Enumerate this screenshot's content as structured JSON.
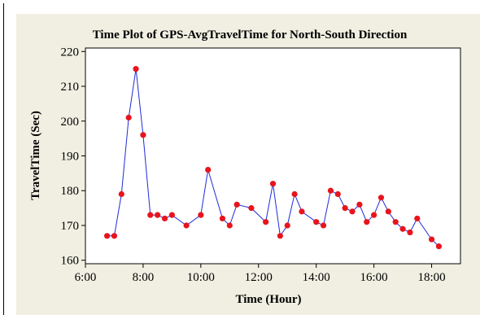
{
  "chart_data": {
    "type": "line",
    "title": "Time Plot of GPS-AvgTravelTime for North-South Direction",
    "xlabel": "Time (Hour)",
    "ylabel": "TravelTime (Sec)",
    "x_ticks": [
      "6:00",
      "8:00",
      "10:00",
      "12:00",
      "14:00",
      "16:00",
      "18:00"
    ],
    "x_tick_values_hours": [
      6,
      8,
      10,
      12,
      14,
      16,
      18
    ],
    "y_ticks": [
      160,
      170,
      180,
      190,
      200,
      210,
      220
    ],
    "xlim_hours": [
      6,
      19
    ],
    "ylim": [
      159,
      221
    ],
    "grid": false,
    "legend": "none",
    "series": [
      {
        "line_color": "#1f2bd6",
        "marker_color": "#e8141c",
        "x_hours": [
          6.75,
          7.0,
          7.25,
          7.5,
          7.75,
          8.0,
          8.25,
          8.5,
          8.75,
          9.0,
          9.5,
          10.0,
          10.25,
          10.75,
          11.0,
          11.25,
          11.75,
          12.25,
          12.5,
          12.75,
          13.0,
          13.25,
          13.5,
          14.0,
          14.25,
          14.5,
          14.75,
          15.0,
          15.25,
          15.5,
          15.75,
          16.0,
          16.25,
          16.5,
          16.75,
          17.0,
          17.25,
          17.5,
          18.0,
          18.25
        ],
        "values": [
          167,
          167,
          179,
          201,
          215,
          196,
          173,
          173,
          172,
          173,
          170,
          173,
          186,
          172,
          170,
          176,
          175,
          171,
          182,
          167,
          170,
          179,
          174,
          171,
          170,
          180,
          179,
          175,
          174,
          176,
          171,
          173,
          178,
          174,
          171,
          169,
          168,
          172,
          166,
          164
        ]
      }
    ]
  }
}
